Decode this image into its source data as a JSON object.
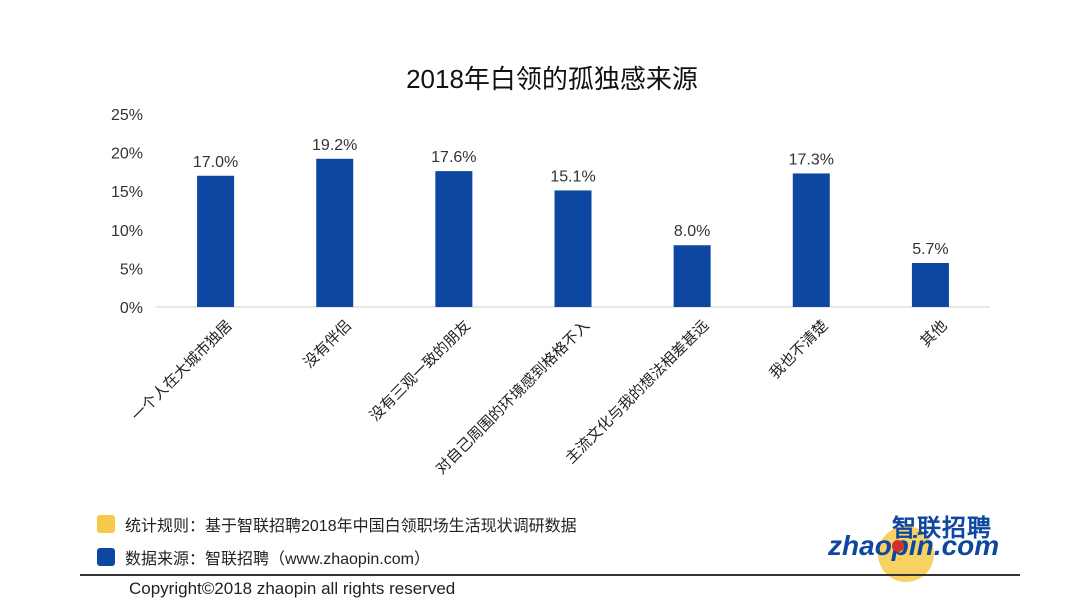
{
  "chart_data": {
    "type": "bar",
    "title": "2018年白领的孤独感来源",
    "categories": [
      "一个人在大城市独居",
      "没有伴侣",
      "没有三观一致的朋友",
      "对自己周围的环境感到格格不入",
      "主流文化与我的想法相差甚远",
      "我也不清楚",
      "其他"
    ],
    "values": [
      17.0,
      19.2,
      17.6,
      15.1,
      8.0,
      17.3,
      5.7
    ],
    "value_labels": [
      "17.0%",
      "19.2%",
      "17.6%",
      "15.1%",
      "8.0%",
      "17.3%",
      "5.7%"
    ],
    "ylim": [
      0,
      25
    ],
    "yticks": [
      "0%",
      "5%",
      "10%",
      "15%",
      "20%",
      "25%"
    ],
    "ytick_values": [
      0,
      5,
      10,
      15,
      20,
      25
    ],
    "grid": false,
    "bar_color": "#0d47a1"
  },
  "legend": [
    {
      "text": "统计规则：基于智联招聘2018年中国白领职场生活现状调研数据",
      "color": "#f7c948"
    },
    {
      "text": "数据来源：智联招聘（www.zhaopin.com）",
      "color": "#0d47a1"
    }
  ],
  "footer": {
    "copyright": "Copyright©2018 zhaopin all rights reserved"
  },
  "logo": {
    "cn": "智联招聘",
    "en_left": "zha",
    "en_right": "pin.com"
  }
}
